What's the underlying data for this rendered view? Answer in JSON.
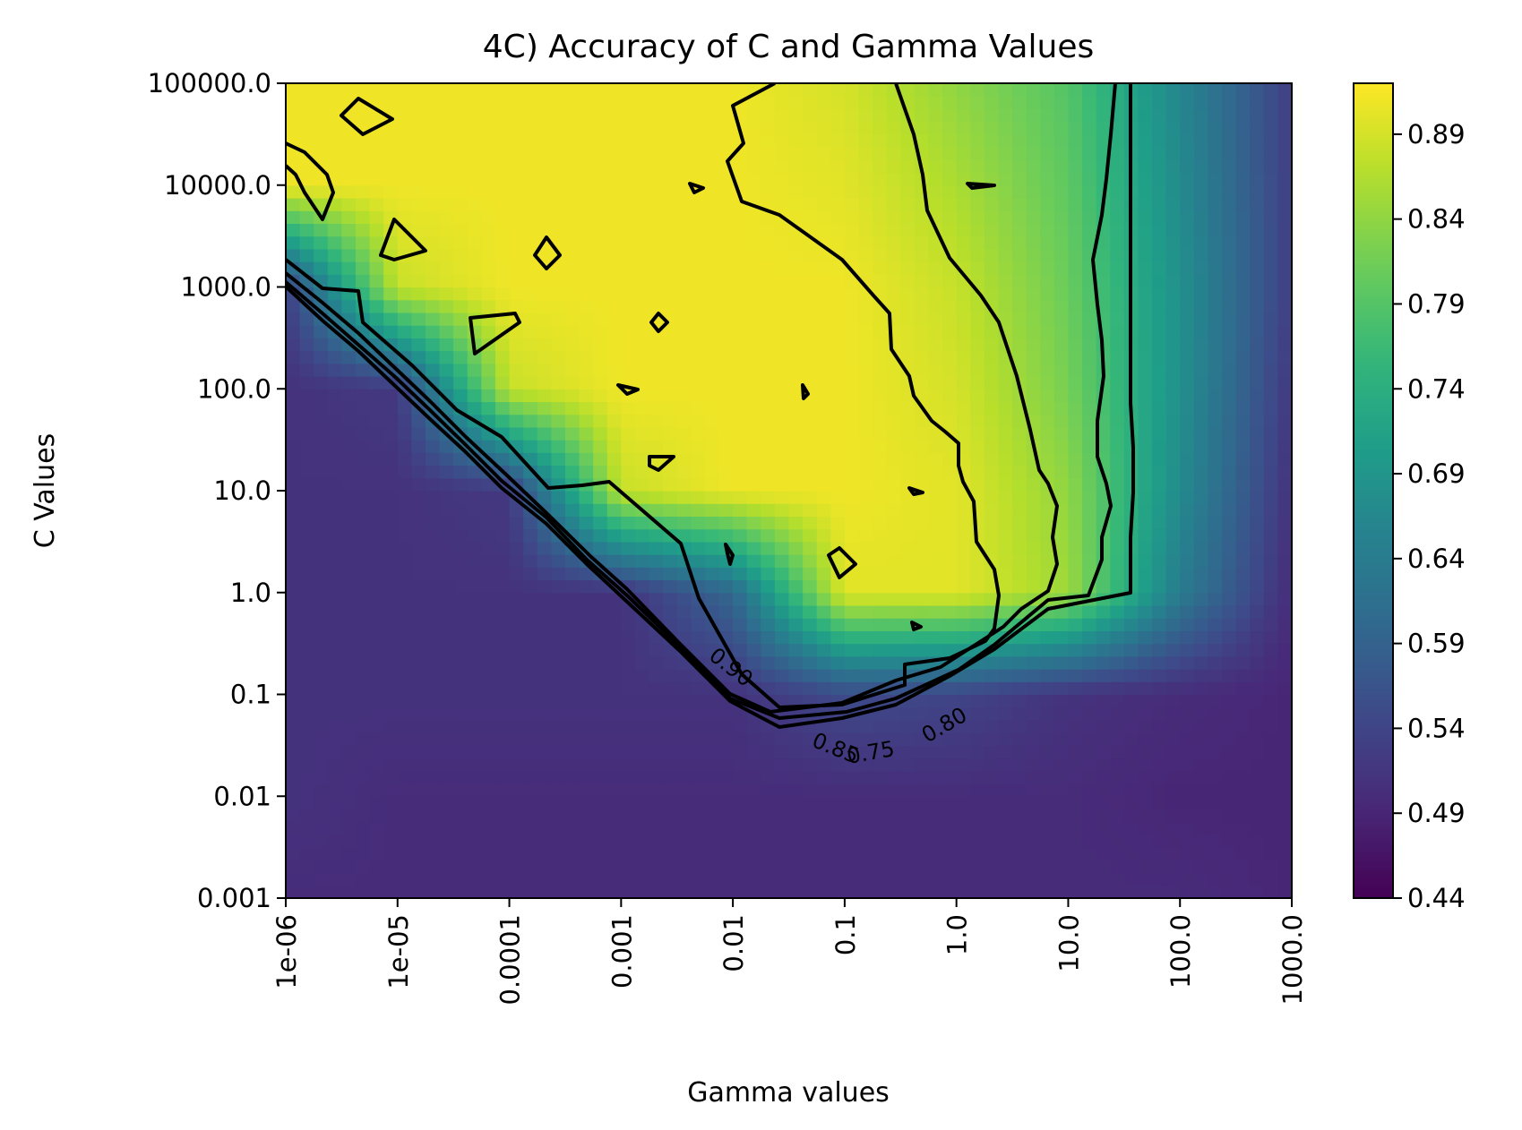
{
  "chart_data": {
    "type": "heatmap",
    "subtype": "filled contour",
    "title": "4C) Accuracy of C and Gamma Values",
    "xlabel": "Gamma values",
    "ylabel": "C Values",
    "x_scale": "log",
    "y_scale": "log",
    "x_ticks": [
      "1e-06",
      "1e-05",
      "0.0001",
      "0.001",
      "0.01",
      "0.1",
      "1.0",
      "10.0",
      "100.0",
      "1000.0"
    ],
    "y_ticks": [
      "0.001",
      "0.01",
      "0.1",
      "1.0",
      "10.0",
      "100.0",
      "1000.0",
      "10000.0",
      "100000.0"
    ],
    "x_values": [
      1e-06,
      1e-05,
      0.0001,
      0.001,
      0.01,
      0.1,
      1.0,
      10.0,
      100.0,
      1000.0
    ],
    "y_values": [
      0.001,
      0.01,
      0.1,
      1.0,
      10.0,
      100.0,
      1000.0,
      10000.0,
      100000.0
    ],
    "z_accuracy": [
      [
        0.5,
        0.5,
        0.5,
        0.5,
        0.5,
        0.5,
        0.5,
        0.5,
        0.5,
        0.49
      ],
      [
        0.51,
        0.5,
        0.5,
        0.5,
        0.5,
        0.5,
        0.5,
        0.5,
        0.49,
        0.49
      ],
      [
        0.51,
        0.51,
        0.51,
        0.51,
        0.51,
        0.55,
        0.54,
        0.51,
        0.5,
        0.49
      ],
      [
        0.51,
        0.51,
        0.51,
        0.51,
        0.6,
        0.9,
        0.9,
        0.85,
        0.64,
        0.5
      ],
      [
        0.51,
        0.51,
        0.52,
        0.88,
        0.91,
        0.91,
        0.9,
        0.84,
        0.67,
        0.51
      ],
      [
        0.51,
        0.52,
        0.88,
        0.91,
        0.91,
        0.91,
        0.89,
        0.82,
        0.68,
        0.52
      ],
      [
        0.53,
        0.88,
        0.91,
        0.91,
        0.91,
        0.91,
        0.88,
        0.81,
        0.68,
        0.53
      ],
      [
        0.91,
        0.91,
        0.91,
        0.91,
        0.91,
        0.9,
        0.86,
        0.8,
        0.67,
        0.53
      ],
      [
        0.91,
        0.91,
        0.91,
        0.91,
        0.91,
        0.89,
        0.84,
        0.79,
        0.66,
        0.53
      ]
    ],
    "contour_levels": [
      0.75,
      0.8,
      0.85,
      0.9
    ],
    "contour_labels": [
      "0.90",
      "0.85",
      "0.75",
      "0.80"
    ],
    "colormap": "viridis",
    "colorbar_ticks": [
      "0.44",
      "0.49",
      "0.54",
      "0.59",
      "0.64",
      "0.69",
      "0.74",
      "0.79",
      "0.84",
      "0.89"
    ],
    "colorbar_values": [
      0.44,
      0.49,
      0.54,
      0.59,
      0.64,
      0.69,
      0.74,
      0.79,
      0.84,
      0.89
    ],
    "colorbar_range": [
      0.44,
      0.92
    ],
    "grid": false,
    "legend": "none"
  }
}
